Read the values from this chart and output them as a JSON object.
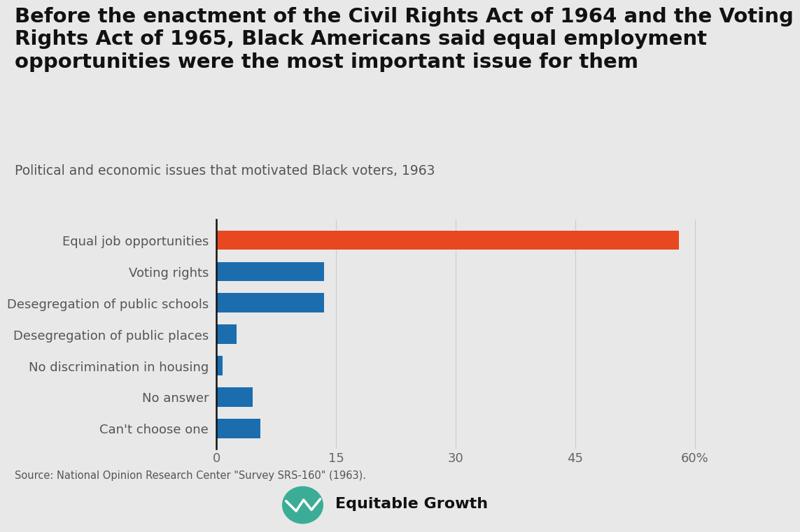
{
  "title": "Before the enactment of the Civil Rights Act of 1964 and the Voting\nRights Act of 1965, Black Americans said equal employment\nopportunities were the most important issue for them",
  "subtitle": "Political and economic issues that motivated Black voters, 1963",
  "categories": [
    "Equal job opportunities",
    "Voting rights",
    "Desegregation of public schools",
    "Desegregation of public places",
    "No discrimination in housing",
    "No answer",
    "Can't choose one"
  ],
  "values": [
    58,
    13.5,
    13.5,
    2.5,
    0.8,
    4.5,
    5.5
  ],
  "bar_colors": [
    "#E84820",
    "#1B6DAE",
    "#1B6DAE",
    "#1B6DAE",
    "#1B6DAE",
    "#1B6DAE",
    "#1B6DAE"
  ],
  "background_color": "#E8E8E8",
  "xlim": [
    0,
    64
  ],
  "xticks": [
    0,
    15,
    30,
    45,
    60
  ],
  "xticklabels": [
    "0",
    "15",
    "30",
    "45",
    "60%"
  ],
  "source_text": "Source: National Opinion Research Center \"Survey SRS-160\" (1963).",
  "logo_text": "Equitable Growth",
  "logo_color": "#3BAD96",
  "title_fontsize": 21,
  "subtitle_fontsize": 13.5,
  "label_fontsize": 13,
  "tick_fontsize": 13,
  "source_fontsize": 10.5,
  "logo_fontsize": 16
}
